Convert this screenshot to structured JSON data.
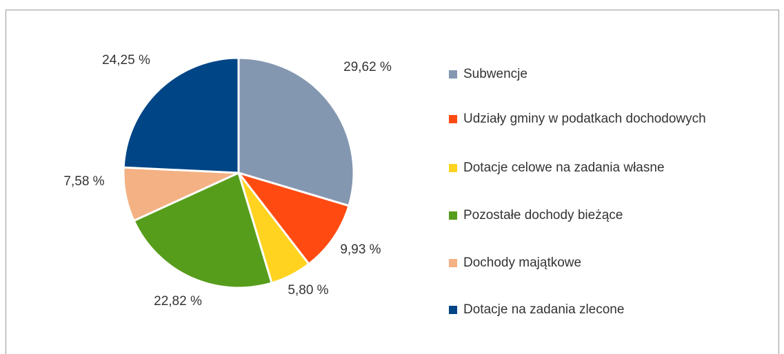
{
  "chart_data": {
    "type": "pie",
    "categories": [
      "Subwencje",
      "Udziały gminy w podatkach dochodowych",
      "Dotacje celowe na zadania własne",
      "Pozostałe dochody bieżące",
      "Dochody majątkowe",
      "Dotacje na zadania zlecone"
    ],
    "values": [
      29.62,
      9.93,
      5.8,
      22.82,
      7.58,
      24.25
    ],
    "value_labels": [
      "29,62 %",
      "9,93 %",
      "5,80 %",
      "22,82 %",
      "7,58 %",
      "24,25 %"
    ],
    "colors": [
      "#8497b0",
      "#ff4b12",
      "#ffd320",
      "#579d1c",
      "#f4b183",
      "#004586"
    ],
    "legend": "right"
  }
}
